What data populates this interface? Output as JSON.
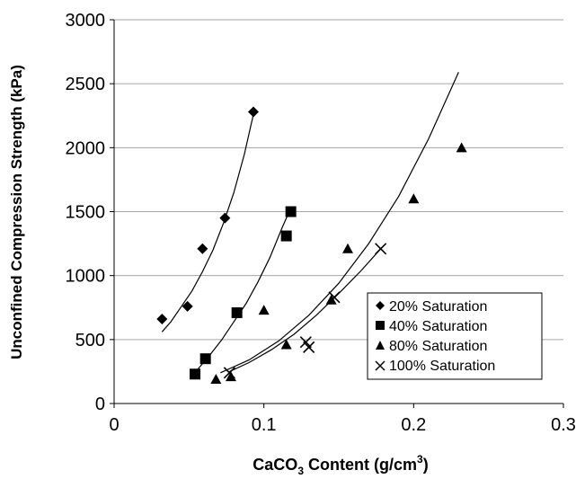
{
  "chart_data": {
    "type": "scatter",
    "title": "",
    "xlabel": {
      "prefix": "CaCO",
      "sub": "3",
      "middle": " Content (g/cm",
      "sup": "3",
      "suffix": ")"
    },
    "ylabel": "Unconfined Compression Strength  (kPa)",
    "xlim": [
      0,
      0.3
    ],
    "ylim": [
      0,
      3000
    ],
    "xticks": [
      "0",
      "0.1",
      "0.2",
      "0.3"
    ],
    "xtick_values": [
      0,
      0.1,
      0.2,
      0.3
    ],
    "yticks": [
      "0",
      "500",
      "1000",
      "1500",
      "2000",
      "2500",
      "3000"
    ],
    "ytick_values": [
      0,
      500,
      1000,
      1500,
      2000,
      2500,
      3000
    ],
    "grid": "horizontal",
    "legend_position": "bottom-right",
    "series": [
      {
        "name": "20% Saturation",
        "marker": "diamond",
        "x": [
          0.032,
          0.049,
          0.059,
          0.074,
          0.093
        ],
        "y": [
          660,
          760,
          1210,
          1450,
          2280
        ],
        "fit": {
          "x": [
            0.032,
            0.038,
            0.045,
            0.052,
            0.059,
            0.066,
            0.073,
            0.08,
            0.087,
            0.093
          ],
          "y": [
            560,
            640,
            760,
            880,
            1030,
            1200,
            1410,
            1650,
            1950,
            2260
          ]
        }
      },
      {
        "name": "40% Saturation",
        "marker": "square",
        "x": [
          0.054,
          0.061,
          0.082,
          0.115,
          0.118
        ],
        "y": [
          230,
          350,
          710,
          1310,
          1500
        ],
        "fit": {
          "x": [
            0.056,
            0.064,
            0.072,
            0.08,
            0.088,
            0.096,
            0.104,
            0.112,
            0.118
          ],
          "y": [
            270,
            380,
            500,
            640,
            780,
            950,
            1140,
            1370,
            1530
          ]
        }
      },
      {
        "name": "80% Saturation",
        "marker": "triangle",
        "x": [
          0.068,
          0.078,
          0.1,
          0.115,
          0.145,
          0.156,
          0.2,
          0.232
        ],
        "y": [
          190,
          210,
          730,
          460,
          810,
          1210,
          1600,
          2000
        ],
        "fit": {
          "x": [
            0.071,
            0.09,
            0.11,
            0.13,
            0.15,
            0.17,
            0.19,
            0.21,
            0.23
          ],
          "y": [
            240,
            340,
            490,
            690,
            940,
            1250,
            1620,
            2070,
            2590
          ]
        }
      },
      {
        "name": "100% Saturation",
        "marker": "x",
        "x": [
          0.077,
          0.128,
          0.13,
          0.147,
          0.178
        ],
        "y": [
          240,
          480,
          440,
          830,
          1210
        ],
        "fit": {
          "x": [
            0.077,
            0.09,
            0.105,
            0.12,
            0.135,
            0.15,
            0.165,
            0.178
          ],
          "y": [
            250,
            320,
            420,
            540,
            690,
            860,
            1040,
            1210
          ]
        }
      }
    ]
  }
}
